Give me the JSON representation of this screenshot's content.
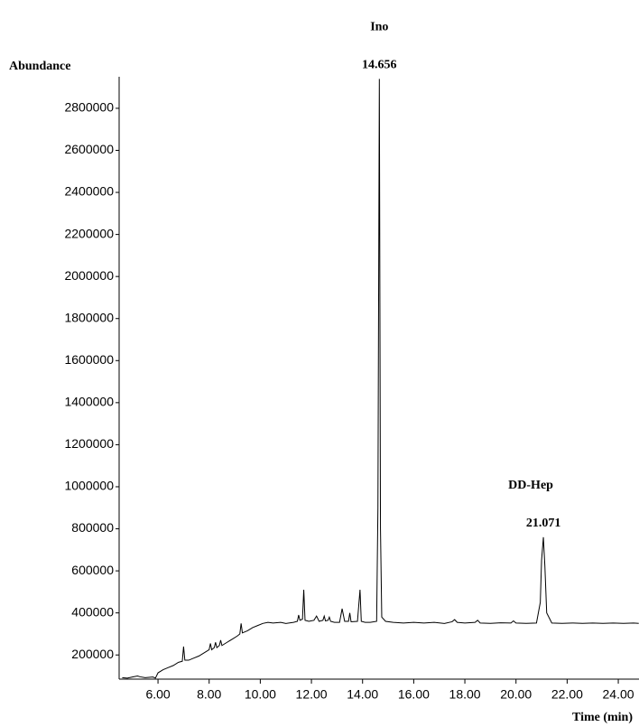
{
  "chart_data": {
    "type": "line",
    "y_label": "Abundance",
    "x_label": "Time (min)",
    "color": "#000000",
    "annotations": [
      {
        "text": "Ino",
        "x": 14.656
      },
      {
        "text": "DD-Hep",
        "x": 21.071
      }
    ],
    "x": [
      4.6,
      4.8,
      5.0,
      5.2,
      5.3,
      5.5,
      5.8,
      5.9,
      6.0,
      6.2,
      6.4,
      6.6,
      6.8,
      6.95,
      7.0,
      7.05,
      7.2,
      7.4,
      7.6,
      7.8,
      8.0,
      8.05,
      8.1,
      8.2,
      8.25,
      8.3,
      8.4,
      8.45,
      8.5,
      8.7,
      8.9,
      9.1,
      9.2,
      9.25,
      9.3,
      9.5,
      9.7,
      9.9,
      10.1,
      10.3,
      10.5,
      10.8,
      11.0,
      11.3,
      11.45,
      11.5,
      11.55,
      11.65,
      11.7,
      11.75,
      11.9,
      12.1,
      12.2,
      12.3,
      12.45,
      12.5,
      12.55,
      12.65,
      12.7,
      12.75,
      12.9,
      13.1,
      13.2,
      13.3,
      13.45,
      13.5,
      13.55,
      13.8,
      13.9,
      13.95,
      14.1,
      14.3,
      14.55,
      14.6,
      14.656,
      14.7,
      14.75,
      14.9,
      15.2,
      15.6,
      16.0,
      16.4,
      16.8,
      17.2,
      17.5,
      17.6,
      17.7,
      18.0,
      18.4,
      18.5,
      18.6,
      19.0,
      19.4,
      19.8,
      19.9,
      20.0,
      20.4,
      20.8,
      20.95,
      21.0,
      21.071,
      21.13,
      21.2,
      21.4,
      21.8,
      22.2,
      22.6,
      23.0,
      23.4,
      23.8,
      24.2,
      24.6,
      24.8
    ],
    "values": [
      92000,
      90000,
      95000,
      100000,
      96000,
      92000,
      95000,
      90000,
      115000,
      130000,
      140000,
      150000,
      165000,
      170000,
      240000,
      175000,
      175000,
      185000,
      195000,
      210000,
      225000,
      255000,
      225000,
      235000,
      260000,
      235000,
      245000,
      270000,
      245000,
      260000,
      275000,
      290000,
      300000,
      350000,
      305000,
      315000,
      330000,
      340000,
      350000,
      355000,
      352000,
      355000,
      350000,
      355000,
      360000,
      390000,
      365000,
      370000,
      510000,
      365000,
      360000,
      365000,
      385000,
      360000,
      365000,
      385000,
      362000,
      365000,
      380000,
      360000,
      355000,
      355000,
      420000,
      360000,
      360000,
      400000,
      358000,
      360000,
      510000,
      360000,
      355000,
      355000,
      360000,
      900000,
      2940000,
      800000,
      380000,
      360000,
      355000,
      352000,
      355000,
      352000,
      355000,
      350000,
      358000,
      368000,
      355000,
      352000,
      355000,
      365000,
      352000,
      350000,
      353000,
      352000,
      362000,
      352000,
      350000,
      352000,
      450000,
      650000,
      760000,
      620000,
      400000,
      352000,
      350000,
      352000,
      350000,
      352000,
      350000,
      352000,
      350000,
      352000,
      350000
    ],
    "xlim": [
      4.48,
      24.81
    ],
    "ylim": [
      85000,
      2950000
    ],
    "xticks": [
      {
        "value": 6,
        "label": "6.00"
      },
      {
        "value": 8,
        "label": "8.00"
      },
      {
        "value": 10,
        "label": "10.00"
      },
      {
        "value": 12,
        "label": "12.00"
      },
      {
        "value": 14,
        "label": "14.00"
      },
      {
        "value": 16,
        "label": "16.00"
      },
      {
        "value": 18,
        "label": "18.00"
      },
      {
        "value": 20,
        "label": "20.00"
      },
      {
        "value": 22,
        "label": "22.00"
      },
      {
        "value": 24,
        "label": "24.00"
      }
    ],
    "yticks": [
      200000,
      400000,
      600000,
      800000,
      1000000,
      1200000,
      1400000,
      1600000,
      1800000,
      2000000,
      2200000,
      2400000,
      2600000,
      2800000
    ]
  }
}
